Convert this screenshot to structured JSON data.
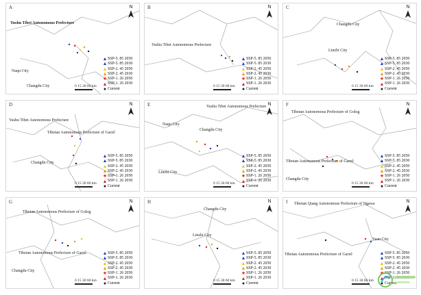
{
  "legend_items": [
    {
      "label": "SSP-5. 85 2050",
      "symbol": "▲",
      "color": "#1f3fbf"
    },
    {
      "label": "SSP-5. 85 2030",
      "symbol": "▲",
      "color": "#1f3fbf"
    },
    {
      "label": "SSP-2. 45 2050",
      "symbol": "▲",
      "color": "#f2c200"
    },
    {
      "label": "SSP-2. 45 2030",
      "symbol": "▲",
      "color": "#f29400"
    },
    {
      "label": "SSP-1. 26 2050",
      "symbol": "★",
      "color": "#e02020"
    },
    {
      "label": "SSP-1. 26 2030",
      "symbol": "▲",
      "color": "#e02020"
    },
    {
      "label": "Current",
      "symbol": "●",
      "color": "#1a1a1a"
    }
  ],
  "scale": {
    "ticks": "0 15 30",
    "unit": "60 km"
  },
  "north_label": "N",
  "panels": [
    {
      "letter": "A",
      "labels": [
        {
          "text": "Yushu Tibet Autonomous Prefecture",
          "x": 6,
          "y": 26,
          "bold": true
        },
        {
          "text": "Naqu City",
          "x": 8,
          "y": 96
        },
        {
          "text": "Changdu City",
          "x": 30,
          "y": 118
        }
      ],
      "legend_items": [
        "SSP-5. 85 2050",
        "SSP-5. 85 2030",
        "SSP-2. 45 2050",
        "SSP-2. 45 2030",
        "SSP-1. 26 2050",
        "SSP-1. 26 2030",
        "Current"
      ]
    },
    {
      "letter": "B",
      "labels": [
        {
          "text": "Yushu Tibet Autonomous Prefecture",
          "x": 10,
          "y": 58
        }
      ],
      "legend_items": [
        "SSP-5. 85 2050",
        "SSP-5. 85 2030",
        "SSP-2. 45 2050",
        "SSP-2. 45 2030",
        "SSP-1. 26 2050",
        "SSP-1. 26 2030",
        "Current"
      ]
    },
    {
      "letter": "C",
      "labels": [
        {
          "text": "Changdu City",
          "x": 78,
          "y": 28
        },
        {
          "text": "Linzhi City",
          "x": 66,
          "y": 66
        }
      ],
      "legend_items": [
        "SSP-5. 85 2050",
        "SSP-5. 85 2030",
        "SSP-2. 45 2050",
        "SSP-2. 45 2030",
        "SSP-1. 26 2050",
        "SSP-1. 26 2030",
        "Current"
      ]
    },
    {
      "letter": "D",
      "labels": [
        {
          "text": "Yushu Tibet Autonomous Prefecture",
          "x": 4,
          "y": 26
        },
        {
          "text": "Tibetan Autonomous Prefecture of Garzê",
          "x": 60,
          "y": 44
        },
        {
          "text": "Changdu City",
          "x": 36,
          "y": 88
        }
      ],
      "legend_items": [
        "SSP-5. 85 2050",
        "SSP-5. 85 2030",
        "SSP-2. 45 2050",
        "SSP-2. 45 2030",
        "SSP-1. 26 2050",
        "SSP-1. 26 2030",
        "Current"
      ]
    },
    {
      "letter": "E",
      "labels": [
        {
          "text": "Yushu Tibet Autonomous Prefecture",
          "x": 90,
          "y": 6
        },
        {
          "text": "Naqu City",
          "x": 26,
          "y": 32
        },
        {
          "text": "Changdu City",
          "x": 80,
          "y": 40
        },
        {
          "text": "Linzhi City",
          "x": 20,
          "y": 102
        }
      ],
      "legend_items": [
        "SSP-5. 85 2050",
        "SSP-5. 85 2030",
        "SSP-2. 45 2050",
        "SSP-2. 45 2030",
        "SSP-1. 26 2050",
        "SSP-1. 26 2030",
        "Current"
      ]
    },
    {
      "letter": "F",
      "labels": [
        {
          "text": "Tibetan Autonomous Prefecture of Golog",
          "x": 12,
          "y": 14
        },
        {
          "text": "Tibetan Autonomous Prefecture of Garzê",
          "x": 4,
          "y": 86
        },
        {
          "text": "Changdu City",
          "x": 4,
          "y": 112
        }
      ],
      "legend_items": [
        "SSP-5. 85 2050",
        "SSP-5. 85 2030",
        "SSP-2. 45 2050",
        "SSP-2. 45 2030",
        "SSP-1. 26 2050",
        "SSP-1. 26 2030",
        "Current"
      ]
    },
    {
      "letter": "G",
      "labels": [
        {
          "text": "Tibetan Autonomous Prefecture of Golog",
          "x": 24,
          "y": 18
        },
        {
          "text": "Tibetan Autonomous Prefecture of Garzê",
          "x": 18,
          "y": 78
        },
        {
          "text": "Changdu City",
          "x": 8,
          "y": 104
        }
      ],
      "legend_items": [
        "SSP-5. 85 2050",
        "SSP-5. 85 2030",
        "SSP-2. 45 2050",
        "SSP-2. 45 2030",
        "SSP-1. 26 2050",
        "SSP-1. 26 2030",
        "Current"
      ]
    },
    {
      "letter": "H",
      "labels": [
        {
          "text": "Changdu City",
          "x": 86,
          "y": 14
        },
        {
          "text": "Linzhi City",
          "x": 70,
          "y": 52
        }
      ],
      "legend_items": [
        "SSP-5. 85 2050",
        "SSP-5. 85 2030",
        "SSP-2. 45 2050",
        "SSP-2. 45 2030",
        "SSP-1. 26 2050",
        "SSP-1. 26 2030",
        "Current"
      ]
    },
    {
      "letter": "I",
      "labels": [
        {
          "text": "Tibetan Qiang Autonomous Prefecture of Ngawa",
          "x": 16,
          "y": 6
        },
        {
          "text": "Yaan City",
          "x": 130,
          "y": 58
        },
        {
          "text": "Tibetan Autonomous Prefecture of Garzê",
          "x": 2,
          "y": 80
        }
      ],
      "legend_items": [
        "SSP-5. 85 2050",
        "SSP-5. 85 2030",
        "SSP-2. 45 2050",
        "SSP-2. 45 2030",
        "SSP-1. 26 2050",
        "SSP-1. 26 2030",
        "Current"
      ]
    }
  ]
}
